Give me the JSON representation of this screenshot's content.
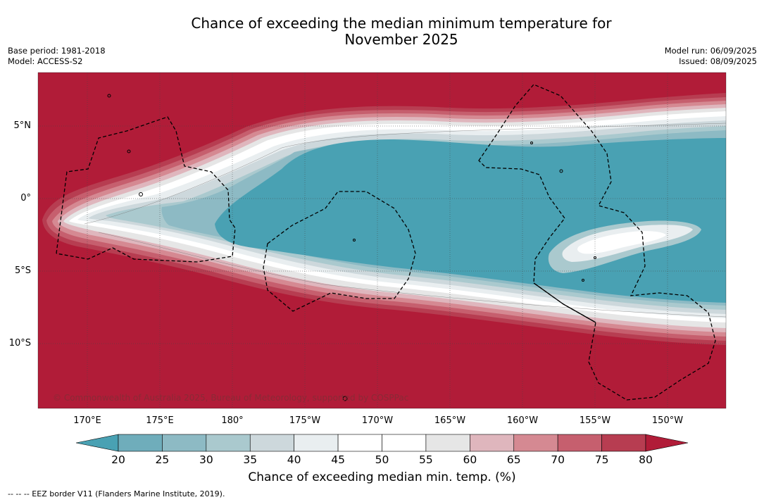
{
  "header": {
    "title_line1": "Chance of exceeding the median minimum temperature for",
    "title_line2": "November 2025",
    "base_period": "Base period: 1981-2018",
    "model": "Model: ACCESS-S2",
    "model_run": "Model run: 06/09/2025",
    "issued": "Issued: 08/09/2025"
  },
  "map": {
    "lat_labels": [
      "5°N",
      "0°",
      "5°S",
      "10°S"
    ],
    "lon_labels": [
      "170°E",
      "175°E",
      "180°",
      "175°W",
      "170°W",
      "165°W",
      "160°W",
      "155°W",
      "150°W"
    ],
    "copyright": "© Commonwealth of Australia 2025, Bureau of Meteorology, supported by COSPPac",
    "land_color": "#b11c38",
    "ocean_core_color": "#49a1b3"
  },
  "colorbar": {
    "ticks": [
      "20",
      "25",
      "30",
      "35",
      "40",
      "45",
      "50",
      "55",
      "60",
      "65",
      "70",
      "75",
      "80"
    ],
    "colors": [
      "#49a1b3",
      "#6fadbb",
      "#8dbac4",
      "#aac9ce",
      "#cdd8dc",
      "#e9eef0",
      "#ffffff",
      "#ffffff",
      "#e6e6e6",
      "#dfb6bd",
      "#d58992",
      "#c65f6e",
      "#b73d51",
      "#b11c38"
    ],
    "label": "Chance of exceeding median min. temp. (%)"
  },
  "footer": {
    "note": "--  --  -- EEZ border V11 (Flanders Marine Institute, 2019)."
  }
}
